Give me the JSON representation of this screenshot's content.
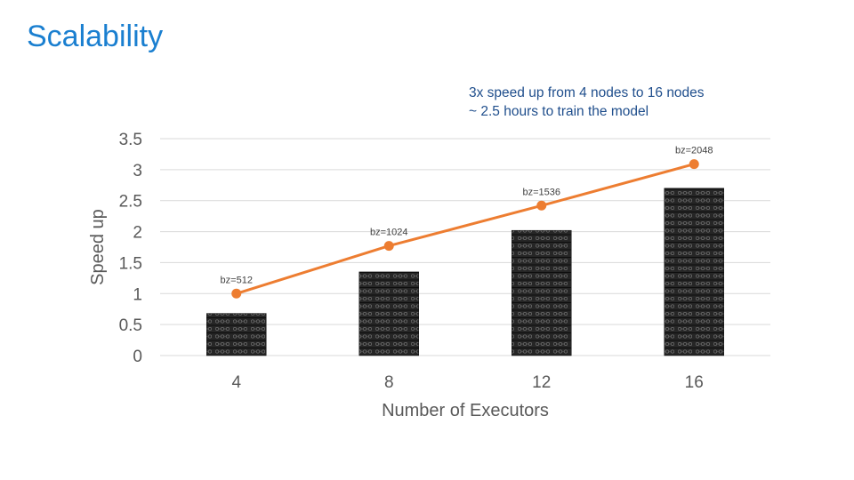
{
  "slide": {
    "title": "Scalability",
    "annotation_lines": [
      "3x speed up from 4 nodes to 16 nodes",
      "~ 2.5 hours to train the model"
    ]
  },
  "colors": {
    "title": "#1a7fd0",
    "annotation": "#1f4e8c",
    "line": "#ed7d31",
    "bar": "#2b2b2b",
    "grid": "#d9d9d9",
    "axis_text": "#595959"
  },
  "chart_data": {
    "type": "bar",
    "categories": [
      "4",
      "8",
      "12",
      "16"
    ],
    "xlabel": "Number of Executors",
    "ylabel": "Speed  up",
    "ylim": [
      0,
      3.5
    ],
    "yticks": [
      "0",
      "0.5",
      "1",
      "1.5",
      "2",
      "2.5",
      "3",
      "3.5"
    ],
    "grid": true,
    "series": [
      {
        "type": "bar",
        "values": [
          0.68,
          1.35,
          2.02,
          2.7
        ],
        "fill": "server-rack-image"
      },
      {
        "type": "line",
        "values": [
          1.0,
          1.77,
          2.42,
          3.09
        ],
        "labels": [
          "bz=512",
          "bz=1024",
          "bz=1536",
          "bz=2048"
        ],
        "color": "#ed7d31"
      }
    ]
  }
}
